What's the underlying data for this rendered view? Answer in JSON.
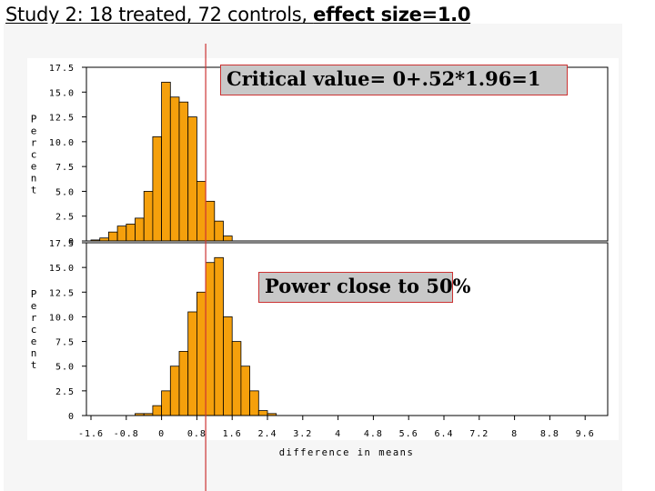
{
  "slide": {
    "title_prefix": "Study 2: 18 treated, 72 controls, ",
    "title_bold": "effect size=1.0"
  },
  "callouts": {
    "critical": "Critical value= 0+.52*1.96=1",
    "power": "Power close to 50%"
  },
  "colors": {
    "bar_fill": "#f5a00c",
    "bar_stroke": "#000000",
    "critical_line": "#cc3333",
    "callout_bg": "#c8c8c8"
  },
  "chart_data": [
    {
      "type": "bar",
      "ylabel": "Percent",
      "ylim": [
        0,
        17.5
      ],
      "yticks": [
        "0",
        "2.5",
        "5.0",
        "7.5",
        "10.0",
        "12.5",
        "15.0",
        "17.5"
      ],
      "x_bin_starts": [
        -1.6,
        -1.4,
        -1.2,
        -1.0,
        -0.8,
        -0.6,
        -0.4,
        -0.2,
        0.0,
        0.2,
        0.4,
        0.6,
        0.8,
        1.0,
        1.2,
        1.4
      ],
      "bin_width": 0.2,
      "values": [
        0.1,
        0.3,
        0.9,
        1.5,
        1.7,
        2.3,
        5.0,
        10.5,
        16.0,
        14.5,
        14.0,
        12.5,
        6.0,
        4.0,
        2.0,
        0.5
      ]
    },
    {
      "type": "bar",
      "xlabel": "difference in means",
      "ylabel": "Percent",
      "ylim": [
        0,
        17.5
      ],
      "yticks": [
        "0",
        "2.5",
        "5.0",
        "7.5",
        "10.0",
        "12.5",
        "15.0",
        "17.5"
      ],
      "xticks": [
        "-1.6",
        "-0.8",
        "0",
        "0.8",
        "1.6",
        "2.4",
        "3.2",
        "4",
        "4.8",
        "5.6",
        "6.4",
        "7.2",
        "8",
        "8.8",
        "9.6"
      ],
      "x_bin_starts": [
        -0.6,
        -0.4,
        -0.2,
        0.0,
        0.2,
        0.4,
        0.6,
        0.8,
        1.0,
        1.2,
        1.4,
        1.6,
        1.8,
        2.0,
        2.2,
        2.4
      ],
      "bin_width": 0.2,
      "values": [
        0.2,
        0.2,
        1.0,
        2.5,
        5.0,
        6.5,
        10.5,
        12.5,
        15.5,
        16.0,
        10.0,
        7.5,
        5.0,
        2.5,
        0.5,
        0.2
      ],
      "critical_value": 1.0
    }
  ]
}
